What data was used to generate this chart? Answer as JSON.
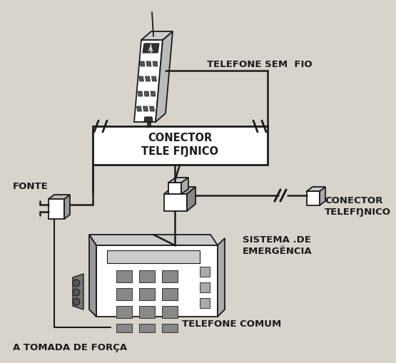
{
  "bg_color": "#d8d4cc",
  "line_color": "#1a1a1a",
  "labels": {
    "telefone_sem_fio": "TELEFONE SEM  FIO",
    "conector_telefonico_top": "CONECTOR\nTELE FŊNICO",
    "fonte": "FONTE",
    "conector_telefonico_right": "CONECTOR\nTELEFŊNICO",
    "sistema_de_emergencia": "SISTEMA .DE\nEMERGÊNCIA",
    "telefone_comum": "TELEFONE COMUM",
    "a_tomada": "A TOMADA DE FORÇA"
  },
  "figsize": [
    5.55,
    5.1
  ],
  "dpi": 100
}
